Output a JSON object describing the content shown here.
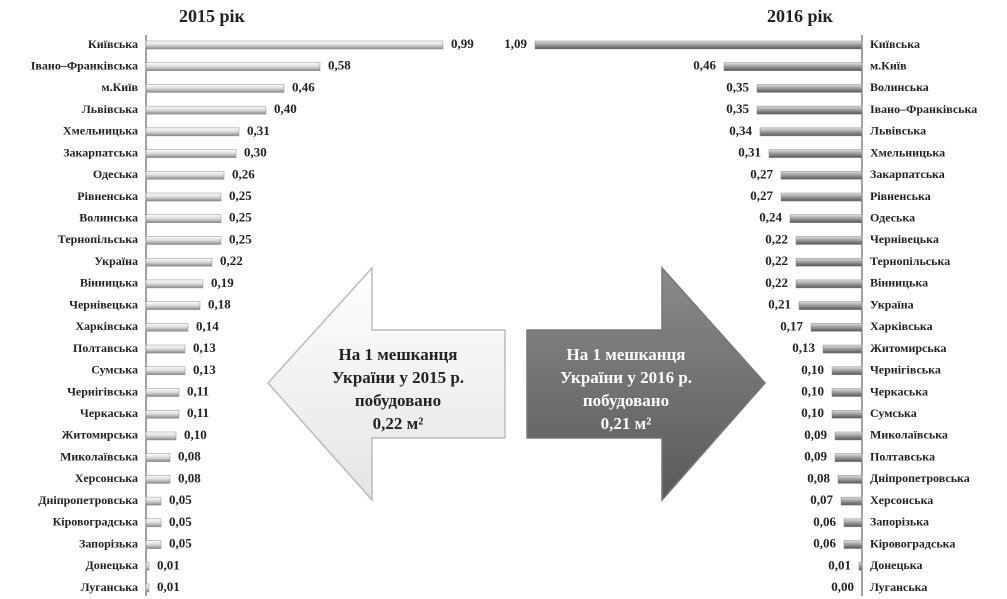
{
  "chart_data": [
    {
      "type": "bar",
      "title": "2015 рік",
      "direction": "right",
      "color": "#d8d8d8",
      "categories": [
        "Київська",
        "Івано–Франківська",
        "м.Київ",
        "Львівська",
        "Хмельницька",
        "Закарпатська",
        "Одеська",
        "Рівненська",
        "Волинська",
        "Тернопільська",
        "Україна",
        "Вінницька",
        "Чернівецька",
        "Харківська",
        "Полтавська",
        "Сумська",
        "Чернігівська",
        "Черкаська",
        "Житомирська",
        "Миколаївська",
        "Херсонська",
        "Дніпропетровська",
        "Кіровоградська",
        "Запорізька",
        "Донецька",
        "Луганська"
      ],
      "values": [
        0.99,
        0.58,
        0.46,
        0.4,
        0.31,
        0.3,
        0.26,
        0.25,
        0.25,
        0.25,
        0.22,
        0.19,
        0.18,
        0.14,
        0.13,
        0.13,
        0.11,
        0.11,
        0.1,
        0.08,
        0.08,
        0.05,
        0.05,
        0.05,
        0.01,
        0.01
      ],
      "value_labels": [
        "0,99",
        "0,58",
        "0,46",
        "0,40",
        "0,31",
        "0,30",
        "0,26",
        "0,25",
        "0,25",
        "0,25",
        "0,22",
        "0,19",
        "0,18",
        "0,14",
        "0,13",
        "0,13",
        "0,11",
        "0,11",
        "0,10",
        "0,08",
        "0,08",
        "0,05",
        "0,05",
        "0,05",
        "0,01",
        "0,01"
      ],
      "annotation": [
        "На 1 мешканця",
        "України у 2015 р.",
        "побудовано",
        "0,22 м²"
      ]
    },
    {
      "type": "bar",
      "title": "2016 рік",
      "direction": "left",
      "color": "#9a9a9a",
      "categories": [
        "Київська",
        "м.Київ",
        "Волинська",
        "Івано–Франківська",
        "Львівська",
        "Хмельницька",
        "Закарпатська",
        "Рівненська",
        "Одеська",
        "Чернівецька",
        "Тернопільська",
        "Вінницька",
        "Україна",
        "Харківська",
        "Житомирська",
        "Чернігівська",
        "Черкаська",
        "Сумська",
        "Миколаївська",
        "Полтавська",
        "Дніпропетровська",
        "Херсонська",
        "Запорізька",
        "Кіровоградська",
        "Донецька",
        "Луганська"
      ],
      "values": [
        1.09,
        0.46,
        0.35,
        0.35,
        0.34,
        0.31,
        0.27,
        0.27,
        0.24,
        0.22,
        0.22,
        0.22,
        0.21,
        0.17,
        0.13,
        0.1,
        0.1,
        0.1,
        0.09,
        0.09,
        0.08,
        0.07,
        0.06,
        0.06,
        0.01,
        0.0
      ],
      "value_labels": [
        "1,09",
        "0,46",
        "0,35",
        "0,35",
        "0,34",
        "0,31",
        "0,27",
        "0,27",
        "0,24",
        "0,22",
        "0,22",
        "0,22",
        "0,21",
        "0,17",
        "0,13",
        "0,10",
        "0,10",
        "0,10",
        "0,09",
        "0,09",
        "0,08",
        "0,07",
        "0,06",
        "0,06",
        "0,01",
        "0,00"
      ],
      "annotation": [
        "На 1 мешканця",
        "України у 2016 р.",
        "побудовано",
        "0,21 м²"
      ]
    }
  ]
}
